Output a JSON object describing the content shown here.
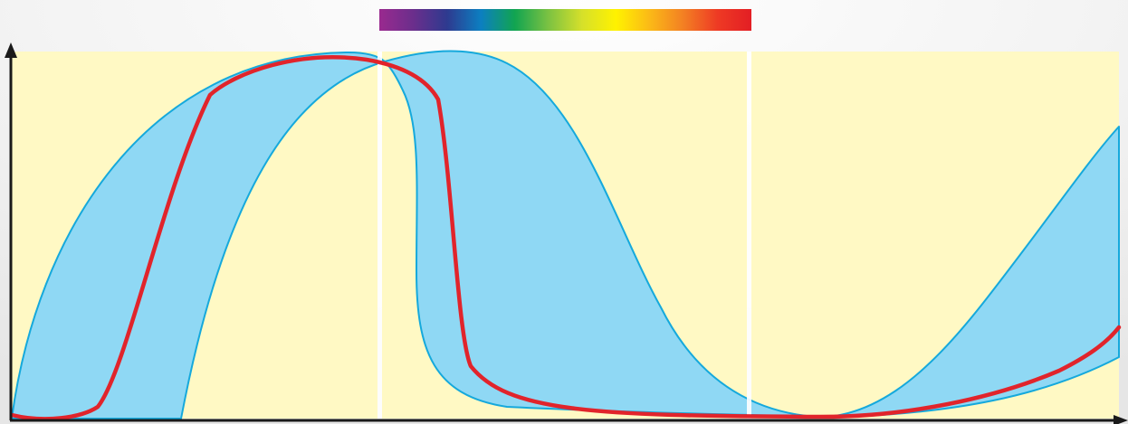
{
  "colors": {
    "background": "#ebebeb",
    "panel": "#fff9c4",
    "divider": "#ffffff",
    "band_fill": "#8fd8f4",
    "band_stroke": "#15a9dc",
    "curve": "#e1242b",
    "axis": "#1a1a1a"
  },
  "spectrum_bar": {
    "stops": [
      "#9a2a8f",
      "#6b2e8c",
      "#2e3a8f",
      "#0c7fc1",
      "#11a451",
      "#7cc242",
      "#d6e02a",
      "#fff200",
      "#fbb917",
      "#f37f23",
      "#ee3a24",
      "#e31e24"
    ]
  },
  "panels": [
    "panel-1",
    "panel-2",
    "panel-3"
  ],
  "icons": {
    "y_axis": "arrow-up-icon",
    "x_axis": "arrow-right-icon"
  }
}
